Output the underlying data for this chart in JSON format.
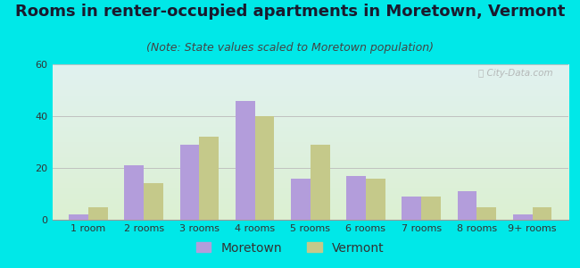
{
  "title": "Rooms in renter-occupied apartments in Moretown, Vermont",
  "subtitle": "(Note: State values scaled to Moretown population)",
  "categories": [
    "1 room",
    "2 rooms",
    "3 rooms",
    "4 rooms",
    "5 rooms",
    "6 rooms",
    "7 rooms",
    "8 rooms",
    "9+ rooms"
  ],
  "moretown_values": [
    2,
    21,
    29,
    46,
    16,
    17,
    9,
    11,
    2
  ],
  "vermont_values": [
    5,
    14,
    32,
    40,
    29,
    16,
    9,
    5,
    5
  ],
  "moretown_color": "#b39ddb",
  "vermont_color": "#c5c98a",
  "bg_outer": "#00e8e8",
  "ylim": [
    0,
    60
  ],
  "yticks": [
    0,
    20,
    40,
    60
  ],
  "title_fontsize": 13,
  "subtitle_fontsize": 9,
  "tick_fontsize": 8,
  "legend_fontsize": 10,
  "watermark_text": "ⓘ City-Data.com",
  "bar_width": 0.35
}
